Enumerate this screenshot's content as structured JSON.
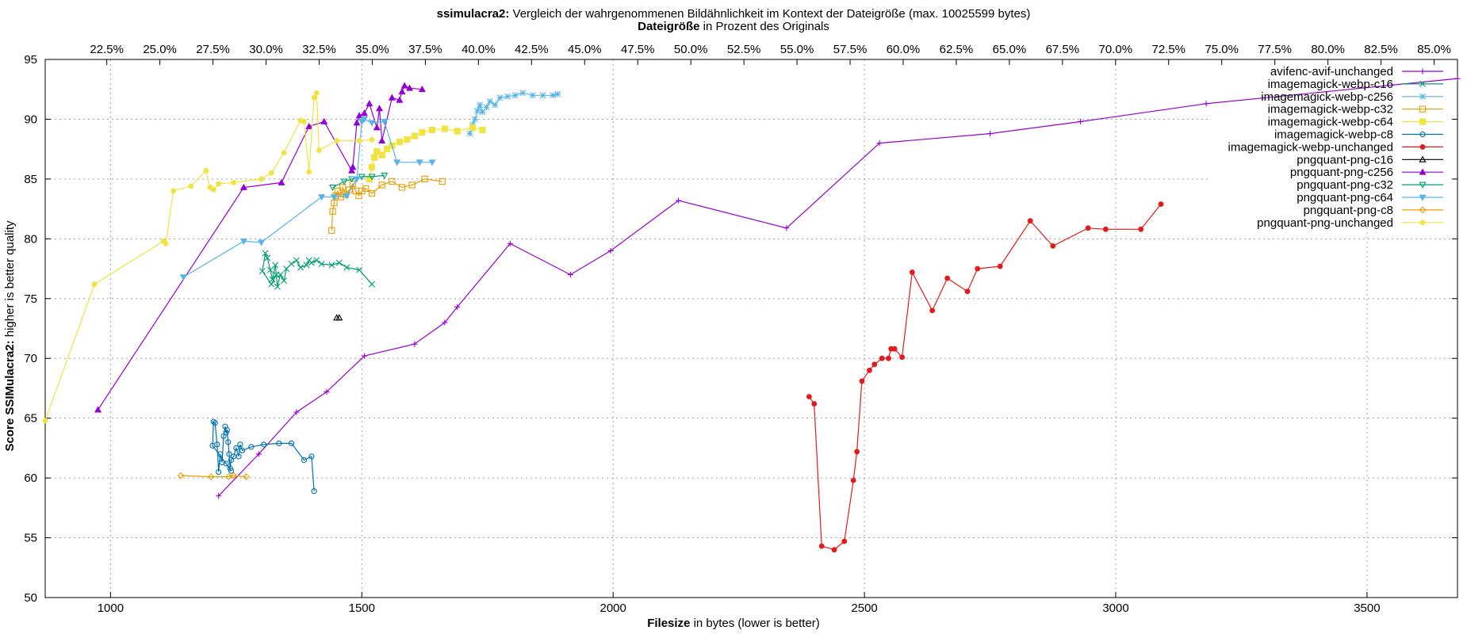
{
  "chart_data": {
    "type": "line",
    "title_bold": "ssimulacra2:",
    "title_rest": " Vergleich der wahrgenommenen Bildähnlichkeit im Kontext der Dateigröße (max. 10025599 bytes)",
    "x2label_bold": "Dateigröße",
    "x2label_rest": " in Prozent des Originals",
    "xlabel_bold": "Filesize",
    "xlabel_rest": " in bytes (lower is better)",
    "ylabel_bold": "Score SSIMulacra2:",
    "ylabel_rest": " higher is better quality",
    "xlim": [
      870,
      3680
    ],
    "ylim": [
      50,
      95
    ],
    "x2lim": [
      19.6,
      86.1
    ],
    "grid": true,
    "legend_position": "top-right",
    "xticks": [
      1000,
      1500,
      2000,
      2500,
      3000,
      3500
    ],
    "xtick_labels": [
      "1000",
      "1500",
      "2000",
      "2500",
      "3000",
      "3500"
    ],
    "yticks": [
      50,
      55,
      60,
      65,
      70,
      75,
      80,
      85,
      90,
      95
    ],
    "ytick_labels": [
      "50",
      "55",
      "60",
      "65",
      "70",
      "75",
      "80",
      "85",
      "90",
      "95"
    ],
    "x2ticks": [
      22.5,
      25,
      27.5,
      30,
      32.5,
      35,
      37.5,
      40,
      42.5,
      45,
      47.5,
      50,
      52.5,
      55,
      57.5,
      60,
      62.5,
      65,
      67.5,
      70,
      72.5,
      75,
      77.5,
      80,
      82.5,
      85
    ],
    "x2tick_labels": [
      "22.5%",
      "25.0%",
      "27.5%",
      "30.0%",
      "32.5%",
      "35.0%",
      "37.5%",
      "40.0%",
      "42.5%",
      "45.0%",
      "47.5%",
      "50.0%",
      "52.5%",
      "55.0%",
      "57.5%",
      "60.0%",
      "62.5%",
      "65.0%",
      "67.5%",
      "70.0%",
      "72.5%",
      "75.0%",
      "77.5%",
      "80.0%",
      "82.5%",
      "85.0%"
    ],
    "series": [
      {
        "name": "avifenc-avif-unchanged",
        "color": "#9400d3",
        "marker": "plus",
        "points": [
          [
            1215,
            58.5
          ],
          [
            1295,
            62.0
          ],
          [
            1370,
            65.5
          ],
          [
            1430,
            67.2
          ],
          [
            1505,
            70.2
          ],
          [
            1605,
            71.2
          ],
          [
            1665,
            73.0
          ],
          [
            1690,
            74.3
          ],
          [
            1795,
            79.6
          ],
          [
            1915,
            77.0
          ],
          [
            1995,
            79.0
          ],
          [
            2130,
            83.2
          ],
          [
            2345,
            80.9
          ],
          [
            2530,
            88.0
          ],
          [
            2750,
            88.8
          ],
          [
            2930,
            89.8
          ],
          [
            3180,
            91.3
          ],
          [
            3680,
            93.4
          ]
        ]
      },
      {
        "name": "imagemagick-webp-c16",
        "color": "#009e73",
        "marker": "x",
        "points": [
          [
            1520,
            76.2
          ],
          [
            1495,
            77.4
          ],
          [
            1470,
            77.6
          ],
          [
            1455,
            78.0
          ],
          [
            1440,
            77.8
          ],
          [
            1420,
            77.9
          ],
          [
            1410,
            78.2
          ],
          [
            1400,
            78.0
          ],
          [
            1395,
            78.2
          ],
          [
            1390,
            77.8
          ],
          [
            1378,
            77.6
          ],
          [
            1370,
            78.2
          ],
          [
            1360,
            77.9
          ],
          [
            1350,
            77.5
          ],
          [
            1345,
            76.5
          ],
          [
            1338,
            77.0
          ],
          [
            1332,
            76.0
          ],
          [
            1328,
            77.8
          ],
          [
            1322,
            76.6
          ],
          [
            1318,
            77.4
          ],
          [
            1312,
            78.4
          ],
          [
            1308,
            78.8
          ],
          [
            1302,
            77.3
          ],
          [
            1320,
            76.2
          ],
          [
            1330,
            77.0
          ]
        ]
      },
      {
        "name": "imagemagick-webp-c256",
        "color": "#56b4e9",
        "marker": "star",
        "points": [
          [
            1715,
            88.8
          ],
          [
            1720,
            89.5
          ],
          [
            1725,
            90.0
          ],
          [
            1730,
            90.7
          ],
          [
            1735,
            91.2
          ],
          [
            1740,
            90.6
          ],
          [
            1748,
            91.0
          ],
          [
            1755,
            91.5
          ],
          [
            1765,
            91.2
          ],
          [
            1775,
            91.8
          ],
          [
            1790,
            91.9
          ],
          [
            1805,
            92.0
          ],
          [
            1820,
            92.2
          ],
          [
            1840,
            92.0
          ],
          [
            1860,
            92.0
          ],
          [
            1880,
            92.0
          ],
          [
            1890,
            92.1
          ]
        ]
      },
      {
        "name": "imagemagick-webp-c32",
        "color": "#e69f00",
        "marker": "square",
        "points": [
          [
            1440,
            80.7
          ],
          [
            1442,
            82.3
          ],
          [
            1445,
            83.0
          ],
          [
            1448,
            83.6
          ],
          [
            1452,
            84.0
          ],
          [
            1458,
            83.5
          ],
          [
            1462,
            84.3
          ],
          [
            1468,
            83.7
          ],
          [
            1475,
            84.1
          ],
          [
            1482,
            84.6
          ],
          [
            1488,
            84.0
          ],
          [
            1494,
            83.6
          ],
          [
            1500,
            84.0
          ],
          [
            1508,
            84.2
          ],
          [
            1520,
            83.8
          ],
          [
            1540,
            84.5
          ],
          [
            1560,
            84.8
          ],
          [
            1580,
            84.3
          ],
          [
            1600,
            84.5
          ],
          [
            1625,
            85.0
          ],
          [
            1660,
            84.8
          ]
        ]
      },
      {
        "name": "imagemagick-webp-c64",
        "color": "#f0e442",
        "marker": "square-filled",
        "points": [
          [
            1515,
            85.0
          ],
          [
            1520,
            86.0
          ],
          [
            1525,
            86.8
          ],
          [
            1530,
            87.3
          ],
          [
            1540,
            87.0
          ],
          [
            1550,
            87.5
          ],
          [
            1560,
            87.8
          ],
          [
            1575,
            88.1
          ],
          [
            1590,
            88.3
          ],
          [
            1605,
            88.6
          ],
          [
            1620,
            88.9
          ],
          [
            1640,
            89.1
          ],
          [
            1665,
            89.2
          ],
          [
            1690,
            89.0
          ],
          [
            1720,
            89.3
          ],
          [
            1740,
            89.1
          ]
        ]
      },
      {
        "name": "imagemagick-webp-c8",
        "color": "#0072b2",
        "marker": "circle",
        "points": [
          [
            1405,
            58.9
          ],
          [
            1400,
            61.8
          ],
          [
            1385,
            61.5
          ],
          [
            1360,
            62.9
          ],
          [
            1335,
            62.9
          ],
          [
            1305,
            62.8
          ],
          [
            1280,
            62.6
          ],
          [
            1262,
            62.3
          ],
          [
            1258,
            62.8
          ],
          [
            1255,
            61.8
          ],
          [
            1250,
            62.5
          ],
          [
            1245,
            61.8
          ],
          [
            1240,
            61.5
          ],
          [
            1238,
            60.8
          ],
          [
            1236,
            62.0
          ],
          [
            1234,
            63.0
          ],
          [
            1232,
            64.0
          ],
          [
            1230,
            63.8
          ],
          [
            1228,
            64.3
          ],
          [
            1225,
            63.5
          ],
          [
            1222,
            61.3
          ],
          [
            1218,
            62.0
          ],
          [
            1215,
            60.5
          ],
          [
            1212,
            62.8
          ],
          [
            1208,
            64.6
          ],
          [
            1205,
            64.7
          ],
          [
            1203,
            62.7
          ],
          [
            1230,
            61.2
          ],
          [
            1240,
            60.6
          ]
        ]
      },
      {
        "name": "imagemagick-webp-unchanged",
        "color": "#e41a1c",
        "marker": "circle-filled",
        "points": [
          [
            2390,
            66.8
          ],
          [
            2400,
            66.2
          ],
          [
            2415,
            54.3
          ],
          [
            2440,
            54.0
          ],
          [
            2460,
            54.7
          ],
          [
            2478,
            59.8
          ],
          [
            2485,
            62.2
          ],
          [
            2495,
            68.1
          ],
          [
            2510,
            69.0
          ],
          [
            2520,
            69.5
          ],
          [
            2535,
            70.0
          ],
          [
            2548,
            70.0
          ],
          [
            2553,
            70.8
          ],
          [
            2560,
            70.8
          ],
          [
            2575,
            70.1
          ],
          [
            2595,
            77.2
          ],
          [
            2635,
            74.0
          ],
          [
            2665,
            76.7
          ],
          [
            2705,
            75.6
          ],
          [
            2725,
            77.5
          ],
          [
            2770,
            77.7
          ],
          [
            2830,
            81.5
          ],
          [
            2875,
            79.4
          ],
          [
            2945,
            80.9
          ],
          [
            2980,
            80.8
          ],
          [
            3050,
            80.8
          ],
          [
            3090,
            82.9
          ]
        ]
      },
      {
        "name": "pngquant-png-c16",
        "color": "#000000",
        "marker": "triangle",
        "points": [
          [
            1450,
            73.4
          ],
          [
            1455,
            73.4
          ]
        ]
      },
      {
        "name": "pngquant-png-c256",
        "color": "#9400d3",
        "marker": "triangle-filled",
        "points": [
          [
            975,
            65.7
          ],
          [
            1265,
            84.3
          ],
          [
            1340,
            84.7
          ],
          [
            1395,
            89.4
          ],
          [
            1425,
            89.8
          ],
          [
            1480,
            85.7
          ],
          [
            1482,
            86.0
          ],
          [
            1490,
            89.7
          ],
          [
            1495,
            90.3
          ],
          [
            1505,
            90.5
          ],
          [
            1515,
            91.3
          ],
          [
            1530,
            89.3
          ],
          [
            1535,
            90.9
          ],
          [
            1540,
            88.2
          ],
          [
            1560,
            91.8
          ],
          [
            1575,
            91.6
          ],
          [
            1580,
            92.3
          ],
          [
            1585,
            92.8
          ],
          [
            1595,
            92.6
          ],
          [
            1620,
            92.5
          ]
        ]
      },
      {
        "name": "pngquant-png-c32",
        "color": "#009e73",
        "marker": "triangle-down",
        "points": [
          [
            1442,
            84.3
          ],
          [
            1465,
            84.8
          ],
          [
            1480,
            85.0
          ],
          [
            1500,
            85.2
          ],
          [
            1520,
            85.2
          ],
          [
            1545,
            85.3
          ]
        ]
      },
      {
        "name": "pngquant-png-c64",
        "color": "#56b4e9",
        "marker": "triangle-down-filled",
        "points": [
          [
            1145,
            76.8
          ],
          [
            1265,
            79.8
          ],
          [
            1300,
            79.7
          ],
          [
            1420,
            83.5
          ],
          [
            1445,
            83.5
          ],
          [
            1470,
            83.6
          ],
          [
            1490,
            85.0
          ],
          [
            1500,
            89.8
          ],
          [
            1505,
            90.0
          ],
          [
            1520,
            89.7
          ],
          [
            1545,
            89.8
          ],
          [
            1570,
            86.4
          ],
          [
            1615,
            86.4
          ],
          [
            1640,
            86.4
          ]
        ]
      },
      {
        "name": "pngquant-png-c8",
        "color": "#e69f00",
        "marker": "diamond",
        "points": [
          [
            1140,
            60.2
          ],
          [
            1200,
            60.1
          ],
          [
            1235,
            60.1
          ],
          [
            1245,
            60.2
          ],
          [
            1270,
            60.1
          ]
        ]
      },
      {
        "name": "pngquant-png-unchanged",
        "color": "#f0e442",
        "marker": "circle-filled",
        "points": [
          [
            870,
            64.8
          ],
          [
            968,
            76.2
          ],
          [
            1105,
            79.8
          ],
          [
            1110,
            79.6
          ],
          [
            1125,
            84.0
          ],
          [
            1160,
            84.4
          ],
          [
            1190,
            85.7
          ],
          [
            1198,
            84.3
          ],
          [
            1205,
            84.1
          ],
          [
            1215,
            84.6
          ],
          [
            1245,
            84.7
          ],
          [
            1300,
            85.0
          ],
          [
            1320,
            85.5
          ],
          [
            1345,
            87.2
          ],
          [
            1378,
            89.9
          ],
          [
            1385,
            89.8
          ],
          [
            1395,
            85.6
          ],
          [
            1405,
            91.8
          ],
          [
            1410,
            92.2
          ],
          [
            1415,
            87.4
          ],
          [
            1450,
            88.2
          ],
          [
            1495,
            88.2
          ],
          [
            1520,
            88.3
          ]
        ]
      }
    ]
  }
}
